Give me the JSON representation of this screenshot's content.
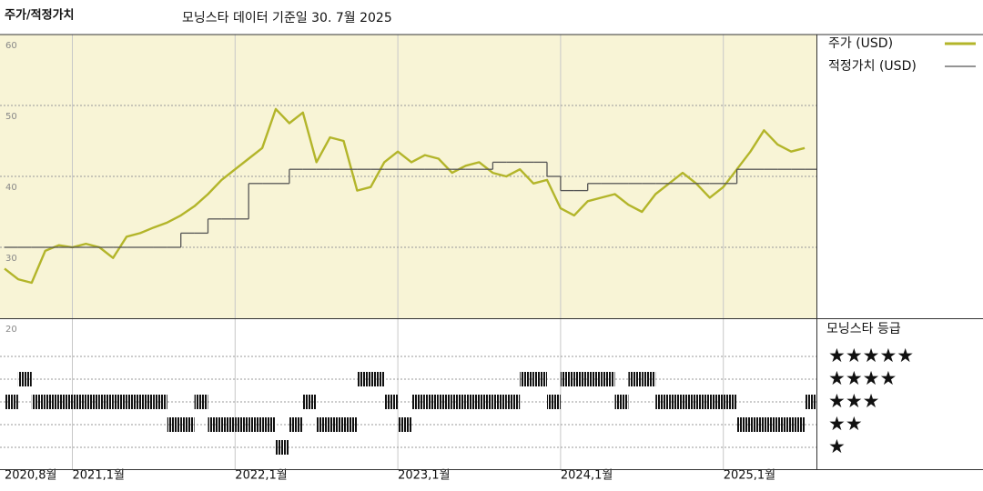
{
  "chart_data": [
    {
      "type": "line",
      "title": "주가/적정가치",
      "subtitle": "모닝스타 데이터 기준일 30. 7월 2025",
      "x": [
        "2020-08",
        "2020-09",
        "2020-10",
        "2020-11",
        "2020-12",
        "2021-01",
        "2021-02",
        "2021-03",
        "2021-04",
        "2021-05",
        "2021-06",
        "2021-07",
        "2021-08",
        "2021-09",
        "2021-10",
        "2021-11",
        "2021-12",
        "2022-01",
        "2022-02",
        "2022-03",
        "2022-04",
        "2022-05",
        "2022-06",
        "2022-07",
        "2022-08",
        "2022-09",
        "2022-10",
        "2022-11",
        "2022-12",
        "2023-01",
        "2023-02",
        "2023-03",
        "2023-04",
        "2023-05",
        "2023-06",
        "2023-07",
        "2023-08",
        "2023-09",
        "2023-10",
        "2023-11",
        "2023-12",
        "2024-01",
        "2024-02",
        "2024-03",
        "2024-04",
        "2024-05",
        "2024-06",
        "2024-07",
        "2024-08",
        "2024-09",
        "2024-10",
        "2024-11",
        "2024-12",
        "2025-01",
        "2025-02",
        "2025-03",
        "2025-04",
        "2025-05",
        "2025-06",
        "2025-07"
      ],
      "series": [
        {
          "name": "주가 (USD)",
          "color": "#b3b52a",
          "values": [
            27,
            25.5,
            25,
            29.5,
            30.3,
            30,
            30.5,
            30,
            28.5,
            31.5,
            32,
            32.8,
            33.5,
            34.5,
            35.8,
            37.5,
            39.5,
            41,
            42.5,
            44,
            49.5,
            47.5,
            49,
            42,
            45.5,
            45,
            38,
            38.5,
            42,
            43.5,
            42,
            43,
            42.5,
            40.5,
            41.5,
            42,
            40.5,
            40,
            41,
            39,
            39.5,
            35.5,
            34.5,
            36.5,
            37,
            37.5,
            36,
            35,
            37.5,
            39,
            40.5,
            39,
            37,
            38.5,
            41,
            43.5,
            46.5,
            44.5,
            43.5,
            44
          ]
        },
        {
          "name": "적정가치 (USD)",
          "color": "#555555",
          "shape": "step",
          "values": [
            30,
            30,
            30,
            30,
            30,
            30,
            30,
            30,
            30,
            30,
            30,
            30,
            30,
            32,
            32,
            34,
            34,
            34,
            39,
            39,
            39,
            41,
            41,
            41,
            41,
            41,
            41,
            41,
            41,
            41,
            41,
            41,
            41,
            41,
            41,
            41,
            42,
            42,
            42,
            42,
            40,
            38,
            38,
            39,
            39,
            39,
            39,
            39,
            39,
            39,
            39,
            39,
            39,
            39,
            41,
            41,
            41,
            41,
            41,
            41
          ]
        }
      ],
      "xlim": [
        "2020-08",
        "2025-08"
      ],
      "xticks": [
        {
          "value": "2020-08",
          "label": "2020,8월"
        },
        {
          "value": "2021-01",
          "label": "2021,1월"
        },
        {
          "value": "2022-01",
          "label": "2022,1월"
        },
        {
          "value": "2023-01",
          "label": "2023,1월"
        },
        {
          "value": "2024-01",
          "label": "2024,1월"
        },
        {
          "value": "2025-01",
          "label": "2025,1월"
        }
      ],
      "ylim": [
        20,
        60
      ],
      "yticks": [
        20,
        30,
        40,
        50,
        60
      ],
      "grid": true,
      "legend": "right",
      "background": "#f8f4d6"
    },
    {
      "type": "rating",
      "title": "모닝스타 등급",
      "values": [
        3,
        4,
        3,
        3,
        3,
        3,
        3,
        3,
        3,
        3,
        3,
        3,
        2,
        2,
        3,
        2,
        2,
        2,
        2,
        2,
        1,
        2,
        3,
        2,
        2,
        2,
        4,
        4,
        3,
        2,
        3,
        3,
        3,
        3,
        3,
        3,
        3,
        3,
        4,
        4,
        3,
        4,
        4,
        4,
        4,
        3,
        4,
        4,
        3,
        3,
        3,
        3,
        3,
        3,
        2,
        2,
        2,
        2,
        2,
        3
      ],
      "color": "#111111",
      "ylim": [
        0,
        6.6
      ],
      "yticks": [
        {
          "value": 5,
          "label": "★★★★★"
        },
        {
          "value": 4,
          "label": "★★★★"
        },
        {
          "value": 3,
          "label": "★★★"
        },
        {
          "value": 2,
          "label": "★★"
        },
        {
          "value": 1,
          "label": "★"
        }
      ],
      "grid": true
    }
  ]
}
